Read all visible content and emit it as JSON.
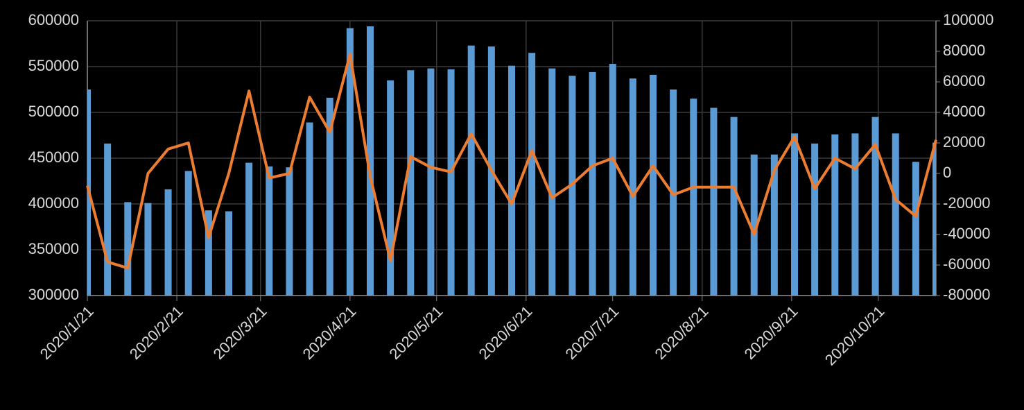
{
  "chart_data": {
    "type": "combo",
    "x": [
      "2020/1/21",
      "2020/1/28",
      "2020/2/4",
      "2020/2/11",
      "2020/2/18",
      "2020/2/25",
      "2020/3/3",
      "2020/3/10",
      "2020/3/17",
      "2020/3/24",
      "2020/3/31",
      "2020/4/7",
      "2020/4/14",
      "2020/4/21",
      "2020/4/28",
      "2020/5/5",
      "2020/5/12",
      "2020/5/19",
      "2020/5/26",
      "2020/6/2",
      "2020/6/9",
      "2020/6/16",
      "2020/6/23",
      "2020/6/30",
      "2020/7/7",
      "2020/7/14",
      "2020/7/21",
      "2020/7/28",
      "2020/8/4",
      "2020/8/11",
      "2020/8/18",
      "2020/8/25",
      "2020/9/1",
      "2020/9/8",
      "2020/9/15",
      "2020/9/22",
      "2020/9/29",
      "2020/10/6",
      "2020/10/13",
      "2020/10/20",
      "2020/10/27",
      "2020/11/3",
      "2020/11/10"
    ],
    "series": [
      {
        "type": "bar",
        "color": "#5b9bd5",
        "values": [
          525000,
          466000,
          402000,
          401000,
          416000,
          436000,
          393000,
          392000,
          445000,
          441000,
          440000,
          489000,
          516000,
          592000,
          594000,
          535000,
          546000,
          548000,
          547000,
          573000,
          572000,
          551000,
          565000,
          548000,
          540000,
          544000,
          553000,
          537000,
          541000,
          525000,
          515000,
          505000,
          495000,
          454000,
          454000,
          477000,
          466000,
          476000,
          477000,
          495000,
          477000,
          446000,
          467000
        ]
      },
      {
        "type": "line",
        "color": "#ed7d31",
        "axis": "y2",
        "values": [
          -8000,
          -58000,
          -62000,
          0,
          16000,
          20000,
          -42000,
          0,
          54000,
          -3000,
          0,
          50000,
          27000,
          78000,
          -2000,
          -57000,
          11000,
          4000,
          1000,
          26000,
          2000,
          -20000,
          15000,
          -16000,
          -7000,
          5000,
          10000,
          -15000,
          5000,
          -14000,
          -9000,
          -9000,
          -9000,
          -40000,
          2000,
          24000,
          -10000,
          10000,
          3000,
          19000,
          -17000,
          -28000,
          22000
        ]
      }
    ],
    "xlim": [
      "2020/1/21",
      "2020/11/10"
    ],
    "xticks": [
      "2020/1/21",
      "2020/2/21",
      "2020/3/21",
      "2020/4/21",
      "2020/5/21",
      "2020/6/21",
      "2020/7/21",
      "2020/8/21",
      "2020/9/21",
      "2020/10/21"
    ],
    "ylim": [
      300000,
      600000
    ],
    "yticks": [
      300000,
      350000,
      400000,
      450000,
      500000,
      550000,
      600000
    ],
    "y2lim": [
      -80000,
      100000
    ],
    "y2ticks": [
      -80000,
      -60000,
      -40000,
      -20000,
      0,
      20000,
      40000,
      60000,
      80000,
      100000
    ],
    "grid": true
  }
}
